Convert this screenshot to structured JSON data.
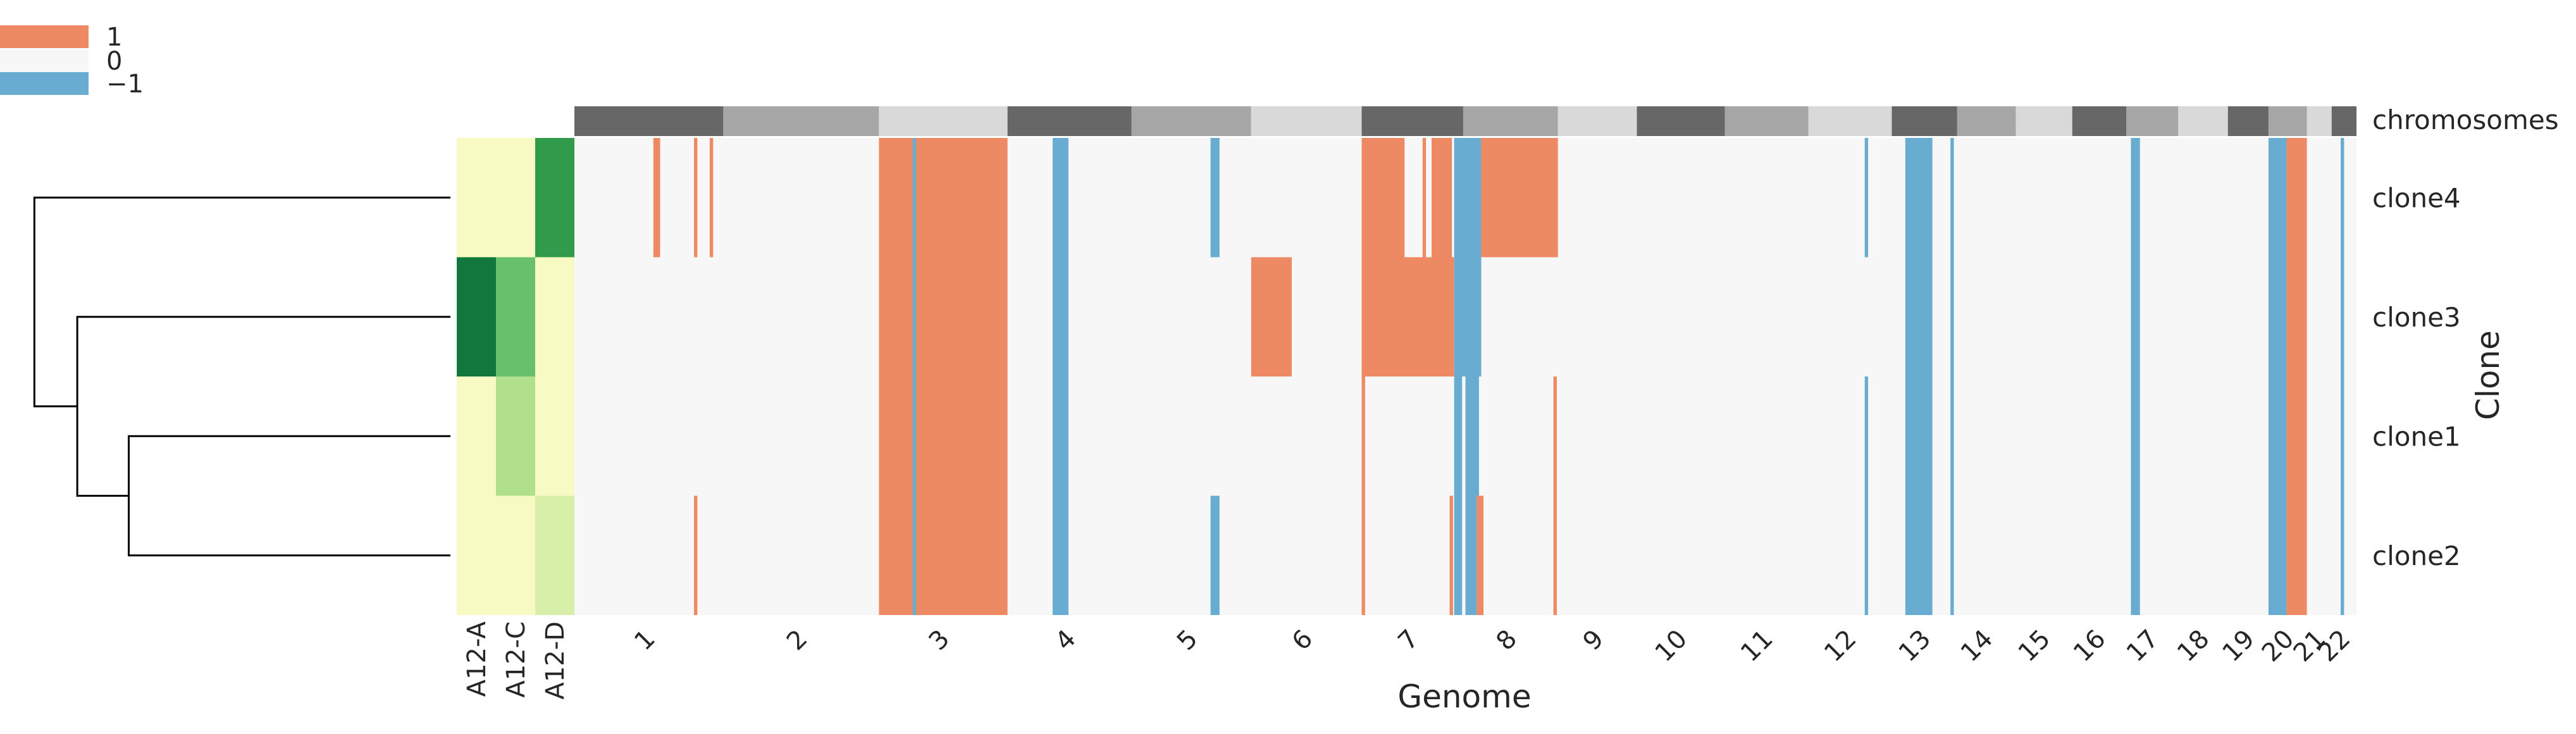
{
  "colors": {
    "gain": "#ee8a63",
    "loss": "#68acd2",
    "neutral": "#f7f7f7",
    "chrom_dark": "#676767",
    "chrom_mid": "#a6a6a6",
    "chrom_light": "#d9d9d9",
    "tree": "#000000"
  },
  "legend": [
    {
      "label": "1",
      "color": "#ee8a63"
    },
    {
      "label": "0",
      "color": "#f7f7f7"
    },
    {
      "label": "−1",
      "color": "#68acd2"
    }
  ],
  "chart_data": {
    "type": "heatmap",
    "xlabel": "Genome",
    "ylabel": "Clone",
    "annotation_row_label": "chromosomes",
    "value_scale": [
      -1,
      0,
      1
    ],
    "chromosomes": [
      {
        "name": "1",
        "start": 0.0,
        "end": 6.6
      },
      {
        "name": "2",
        "start": 6.6,
        "end": 13.5
      },
      {
        "name": "3",
        "start": 13.5,
        "end": 19.2
      },
      {
        "name": "4",
        "start": 19.2,
        "end": 24.7
      },
      {
        "name": "5",
        "start": 24.7,
        "end": 30.0
      },
      {
        "name": "6",
        "start": 30.0,
        "end": 34.9
      },
      {
        "name": "7",
        "start": 34.9,
        "end": 39.4
      },
      {
        "name": "8",
        "start": 39.4,
        "end": 43.6
      },
      {
        "name": "9",
        "start": 43.6,
        "end": 47.1
      },
      {
        "name": "10",
        "start": 47.1,
        "end": 51.0
      },
      {
        "name": "11",
        "start": 51.0,
        "end": 54.7
      },
      {
        "name": "12",
        "start": 54.7,
        "end": 58.4
      },
      {
        "name": "13",
        "start": 58.4,
        "end": 61.3
      },
      {
        "name": "14",
        "start": 61.3,
        "end": 63.9
      },
      {
        "name": "15",
        "start": 63.9,
        "end": 66.4
      },
      {
        "name": "16",
        "start": 66.4,
        "end": 68.8
      },
      {
        "name": "17",
        "start": 68.8,
        "end": 71.1
      },
      {
        "name": "18",
        "start": 71.1,
        "end": 73.3
      },
      {
        "name": "19",
        "start": 73.3,
        "end": 75.1
      },
      {
        "name": "20",
        "start": 75.1,
        "end": 76.8
      },
      {
        "name": "21",
        "start": 76.8,
        "end": 77.9
      },
      {
        "name": "22",
        "start": 77.9,
        "end": 79.0
      }
    ],
    "clones": [
      "clone4",
      "clone3",
      "clone1",
      "clone2"
    ],
    "clone_order": [
      "clone4",
      "clone3",
      "clone1",
      "clone2"
    ],
    "samples": [
      {
        "name": "A12-A",
        "values": [
          0.05,
          0.95,
          0.05,
          0.05
        ]
      },
      {
        "name": "A12-C",
        "values": [
          0.05,
          0.6,
          0.35,
          0.05
        ]
      },
      {
        "name": "A12-D",
        "values": [
          0.75,
          0.05,
          0.05,
          0.2
        ]
      }
    ],
    "segments": {
      "clone4": [
        {
          "start": 3.5,
          "end": 3.8,
          "value": 1
        },
        {
          "start": 5.3,
          "end": 5.45,
          "value": 1
        },
        {
          "start": 6.0,
          "end": 6.15,
          "value": 1
        },
        {
          "start": 13.5,
          "end": 19.2,
          "value": 1
        },
        {
          "start": 15.0,
          "end": 15.15,
          "value": -1
        },
        {
          "start": 21.2,
          "end": 21.9,
          "value": -1
        },
        {
          "start": 28.2,
          "end": 28.6,
          "value": -1
        },
        {
          "start": 34.9,
          "end": 36.8,
          "value": 1
        },
        {
          "start": 37.6,
          "end": 37.75,
          "value": 1
        },
        {
          "start": 38.0,
          "end": 38.9,
          "value": 1
        },
        {
          "start": 39.0,
          "end": 40.2,
          "value": -1
        },
        {
          "start": 40.2,
          "end": 43.6,
          "value": 1
        },
        {
          "start": 57.2,
          "end": 57.35,
          "value": -1
        },
        {
          "start": 59.0,
          "end": 60.2,
          "value": -1
        },
        {
          "start": 61.0,
          "end": 61.15,
          "value": -1
        },
        {
          "start": 69.0,
          "end": 69.4,
          "value": -1
        },
        {
          "start": 75.1,
          "end": 75.9,
          "value": -1
        },
        {
          "start": 75.9,
          "end": 76.8,
          "value": 1
        },
        {
          "start": 78.3,
          "end": 78.45,
          "value": -1
        }
      ],
      "clone3": [
        {
          "start": 13.5,
          "end": 19.2,
          "value": 1
        },
        {
          "start": 15.0,
          "end": 15.15,
          "value": -1
        },
        {
          "start": 21.2,
          "end": 21.9,
          "value": -1
        },
        {
          "start": 30.0,
          "end": 31.8,
          "value": 1
        },
        {
          "start": 34.9,
          "end": 39.0,
          "value": 1
        },
        {
          "start": 39.0,
          "end": 40.2,
          "value": -1
        },
        {
          "start": 59.0,
          "end": 60.2,
          "value": -1
        },
        {
          "start": 61.0,
          "end": 61.15,
          "value": -1
        },
        {
          "start": 69.0,
          "end": 69.4,
          "value": -1
        },
        {
          "start": 75.1,
          "end": 75.9,
          "value": -1
        },
        {
          "start": 75.9,
          "end": 76.8,
          "value": 1
        },
        {
          "start": 78.3,
          "end": 78.45,
          "value": -1
        }
      ],
      "clone1": [
        {
          "start": 13.5,
          "end": 19.2,
          "value": 1
        },
        {
          "start": 15.0,
          "end": 15.15,
          "value": -1
        },
        {
          "start": 21.2,
          "end": 21.9,
          "value": -1
        },
        {
          "start": 34.9,
          "end": 35.05,
          "value": 1
        },
        {
          "start": 39.0,
          "end": 39.35,
          "value": -1
        },
        {
          "start": 39.5,
          "end": 40.1,
          "value": -1
        },
        {
          "start": 43.4,
          "end": 43.55,
          "value": 1
        },
        {
          "start": 57.2,
          "end": 57.35,
          "value": -1
        },
        {
          "start": 59.0,
          "end": 60.2,
          "value": -1
        },
        {
          "start": 61.0,
          "end": 61.15,
          "value": -1
        },
        {
          "start": 69.0,
          "end": 69.4,
          "value": -1
        },
        {
          "start": 75.1,
          "end": 75.9,
          "value": -1
        },
        {
          "start": 75.9,
          "end": 76.8,
          "value": 1
        },
        {
          "start": 78.3,
          "end": 78.45,
          "value": -1
        }
      ],
      "clone2": [
        {
          "start": 5.3,
          "end": 5.45,
          "value": 1
        },
        {
          "start": 13.5,
          "end": 19.2,
          "value": 1
        },
        {
          "start": 15.0,
          "end": 15.15,
          "value": -1
        },
        {
          "start": 21.2,
          "end": 21.9,
          "value": -1
        },
        {
          "start": 28.2,
          "end": 28.6,
          "value": -1
        },
        {
          "start": 34.9,
          "end": 35.05,
          "value": 1
        },
        {
          "start": 38.8,
          "end": 38.95,
          "value": 1
        },
        {
          "start": 39.0,
          "end": 39.35,
          "value": -1
        },
        {
          "start": 39.5,
          "end": 40.0,
          "value": -1
        },
        {
          "start": 40.0,
          "end": 40.3,
          "value": 1
        },
        {
          "start": 43.4,
          "end": 43.55,
          "value": 1
        },
        {
          "start": 57.2,
          "end": 57.35,
          "value": -1
        },
        {
          "start": 59.0,
          "end": 60.2,
          "value": -1
        },
        {
          "start": 61.0,
          "end": 61.15,
          "value": -1
        },
        {
          "start": 69.0,
          "end": 69.4,
          "value": -1
        },
        {
          "start": 75.1,
          "end": 75.9,
          "value": -1
        },
        {
          "start": 75.9,
          "end": 76.8,
          "value": 1
        },
        {
          "start": 78.3,
          "end": 78.45,
          "value": -1
        }
      ]
    },
    "dendrogram": {
      "leaves": [
        "clone4",
        "clone3",
        "clone1",
        "clone2"
      ],
      "merges": [
        {
          "left": "clone1",
          "right": "clone2",
          "height": 0.75
        },
        {
          "left": "clone3",
          "right": "clone1+clone2",
          "height": 0.87
        },
        {
          "left": "clone4",
          "right": "clone3+clone1+clone2",
          "height": 0.97
        }
      ]
    }
  }
}
